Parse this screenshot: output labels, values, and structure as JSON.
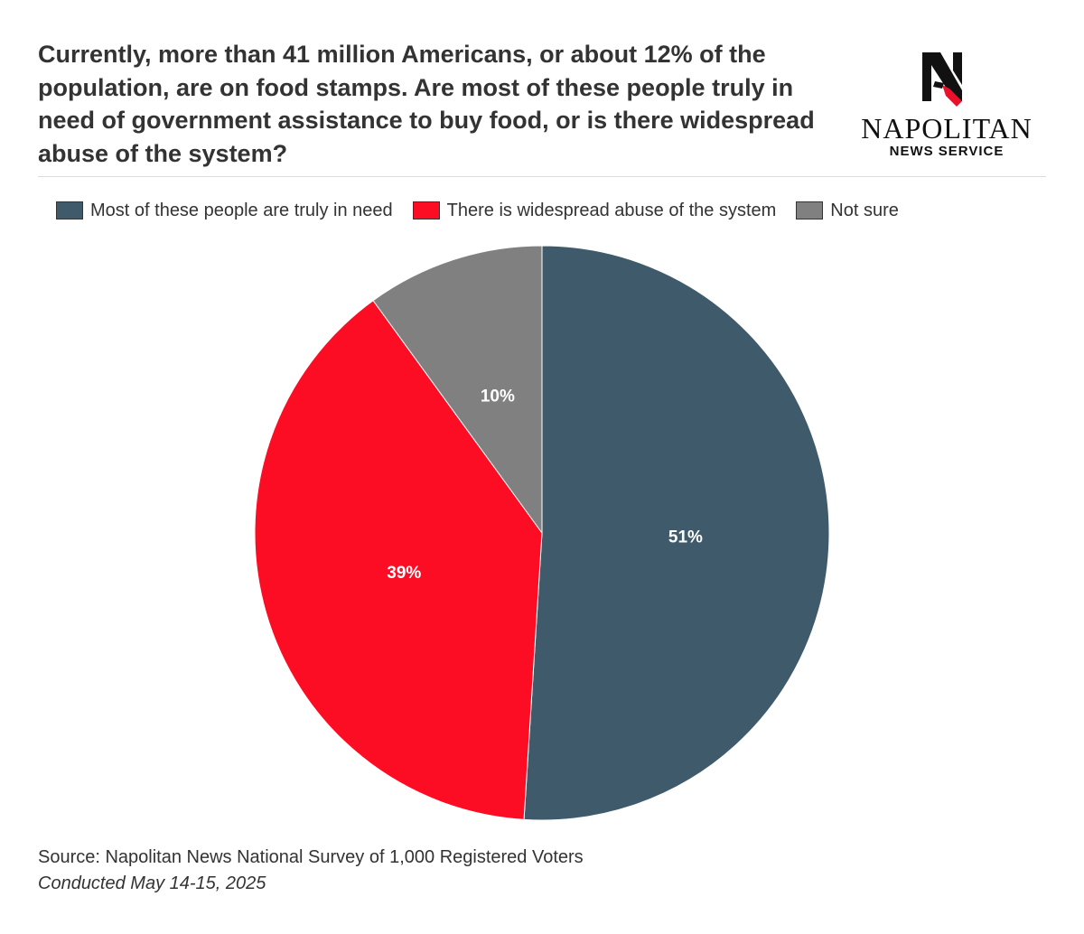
{
  "title": "Currently, more than 41 million Americans, or about 12% of the population, are on food stamps. Are most of these people truly in need of government assistance to buy food, or is there widespread abuse of the system?",
  "logo": {
    "name": "NAPOLITAN",
    "subtitle": "NEWS SERVICE",
    "icon": "napolitan-n-logo-icon"
  },
  "chart_data": {
    "type": "pie",
    "title": "Currently, more than 41 million Americans, or about 12% of the population, are on food stamps. Are most of these people truly in need of government assistance to buy food, or is there widespread abuse of the system?",
    "legend_position": "top",
    "categories": [
      "Most of these people are truly in need",
      "There is widespread abuse of the system",
      "Not sure"
    ],
    "values": [
      51,
      39,
      10
    ],
    "labels": [
      "51%",
      "39%",
      "10%"
    ],
    "colors": [
      "#3f5b6b",
      "#fc0d24",
      "#808080"
    ]
  },
  "source": "Source: Napolitan News National Survey of 1,000 Registered Voters",
  "conducted": "Conducted May 14-15, 2025"
}
